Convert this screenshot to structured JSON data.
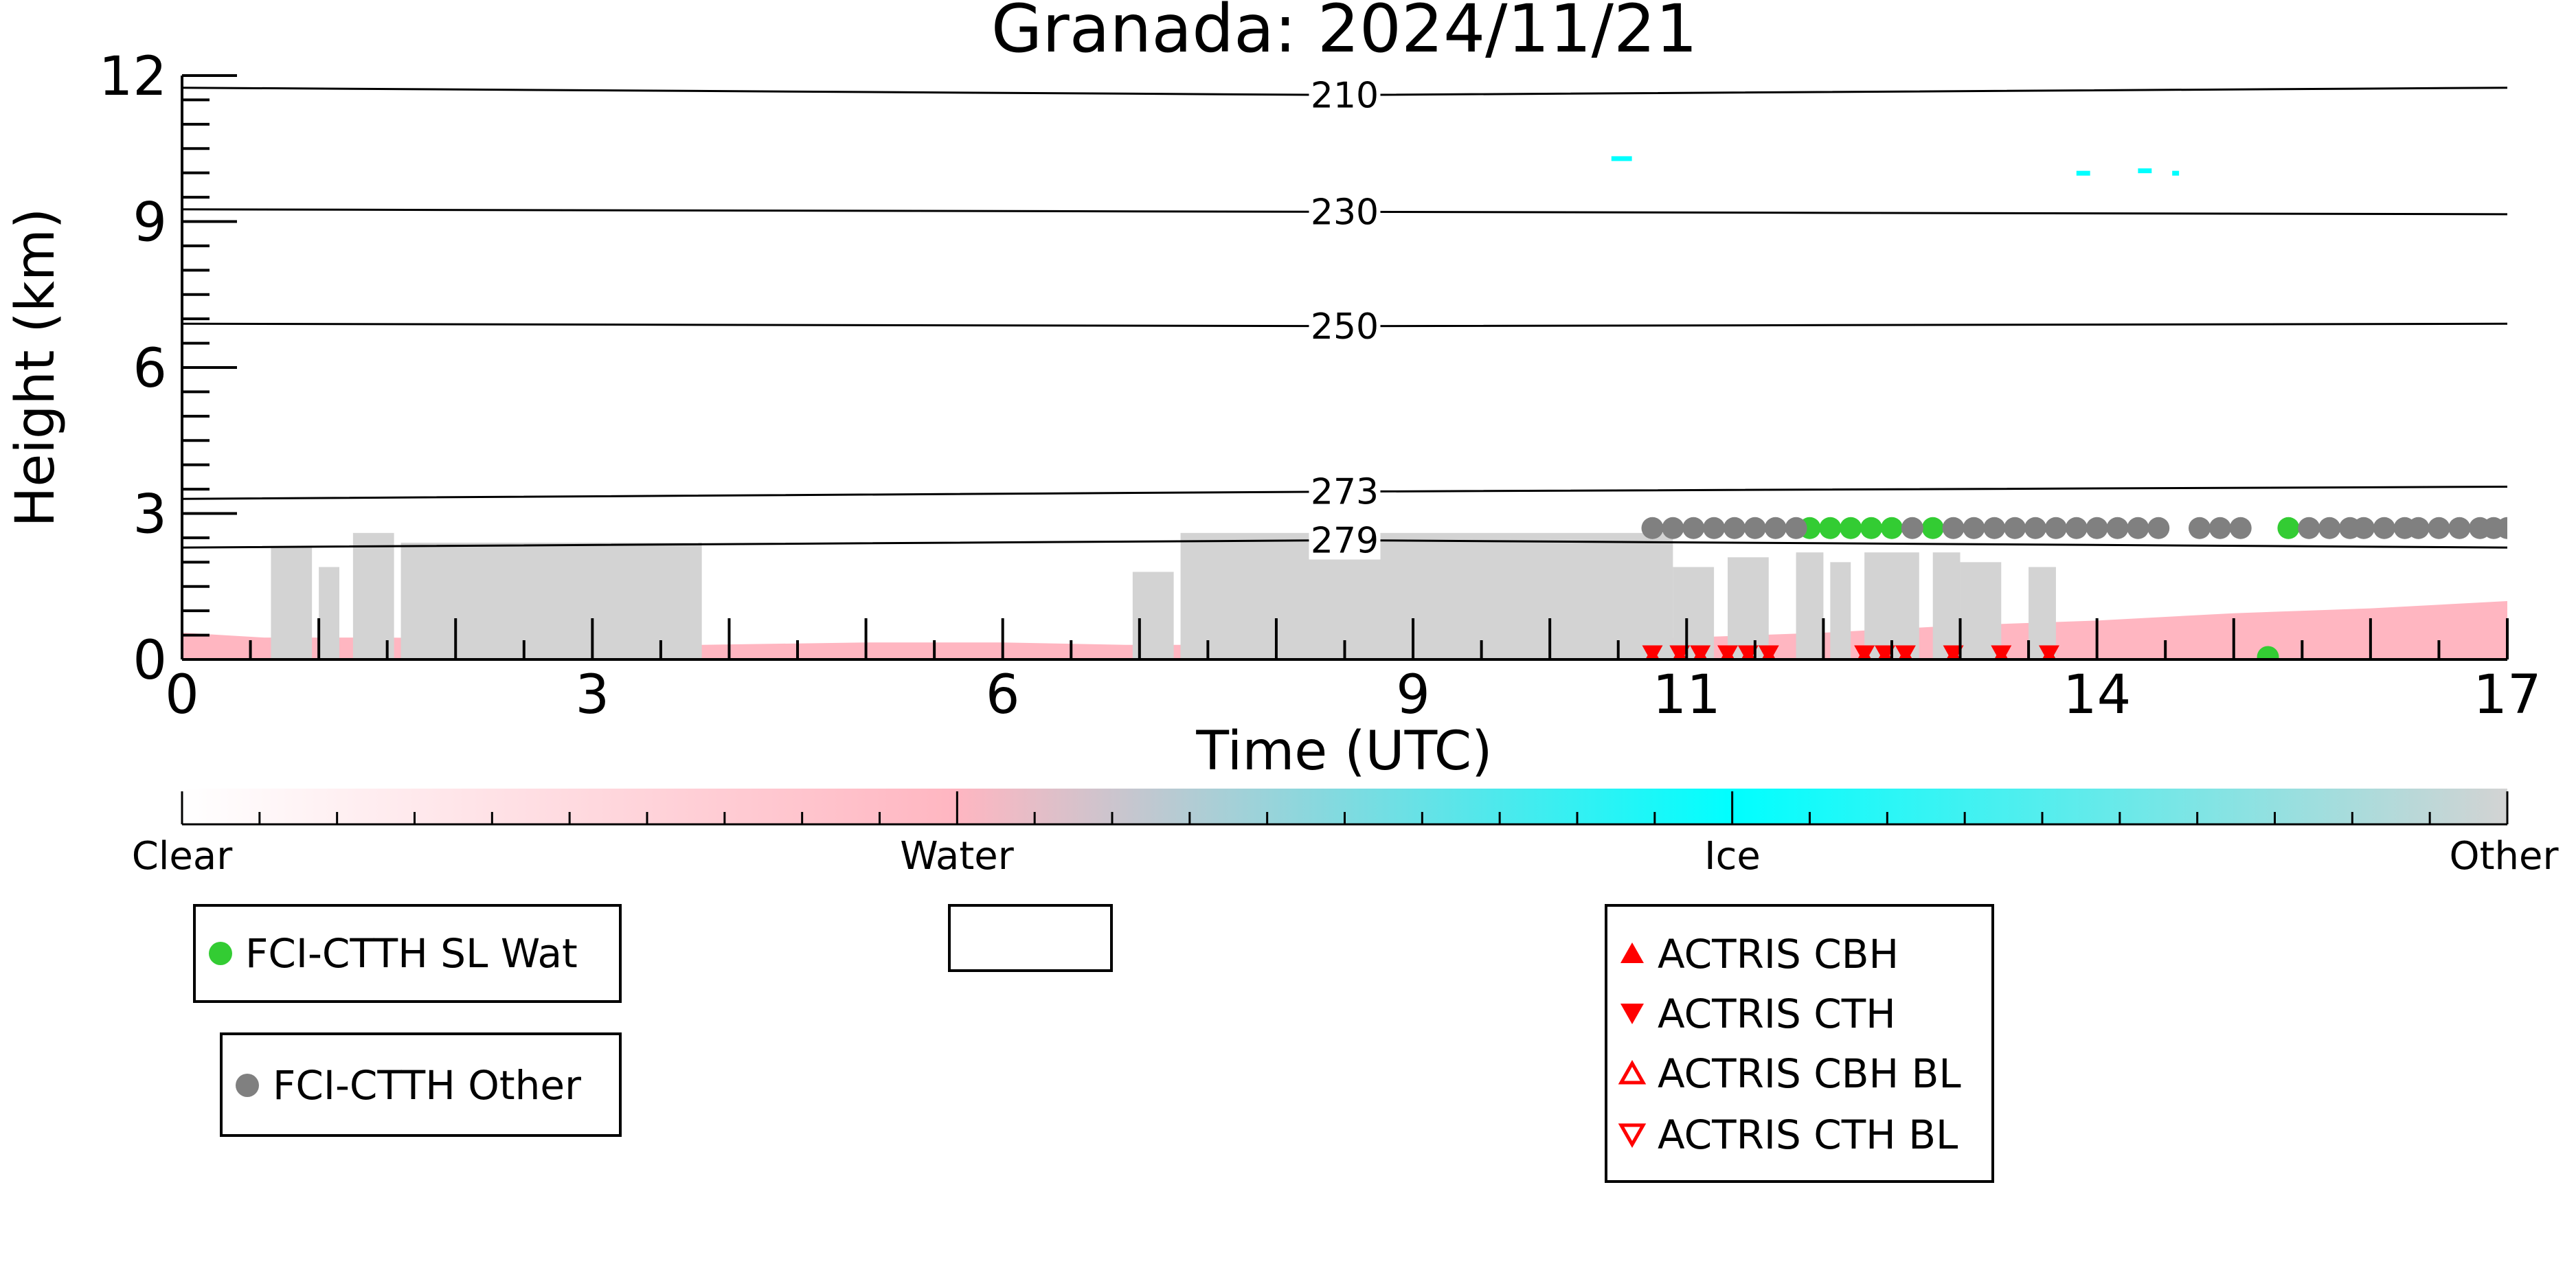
{
  "chart_data": {
    "type": "scatter",
    "title": "Granada: 2024/11/21",
    "xlabel": "Time (UTC)",
    "ylabel": "Height (km)",
    "xlim": [
      0,
      17
    ],
    "ylim": [
      0,
      12
    ],
    "xticks": [
      "0",
      "3",
      "6",
      "9",
      "11",
      "14",
      "17"
    ],
    "xtick_values": [
      0,
      3,
      6,
      9,
      11,
      14,
      17
    ],
    "yticks": [
      "0",
      "3",
      "6",
      "9",
      "12"
    ],
    "ytick_values": [
      0,
      3,
      6,
      9,
      12
    ],
    "isotherms": [
      {
        "label": "210",
        "y_start": 11.75,
        "y_mid": 11.6,
        "y_end": 11.75
      },
      {
        "label": "230",
        "y_start": 9.25,
        "y_mid": 9.2,
        "y_end": 9.15
      },
      {
        "label": "250",
        "y_start": 6.9,
        "y_mid": 6.85,
        "y_end": 6.9
      },
      {
        "label": "273",
        "y_start": 3.3,
        "y_mid": 3.45,
        "y_end": 3.55
      },
      {
        "label": "279",
        "y_start": 2.3,
        "y_mid": 2.45,
        "y_end": 2.3
      }
    ],
    "colorbar": {
      "labels": [
        "Clear",
        "Water",
        "Ice",
        "Other"
      ],
      "colors": [
        "#ffffff",
        "#ffb6c1",
        "#00ffff",
        "#d3d3d3"
      ]
    },
    "classification_colors": {
      "water": "#ffb6c1",
      "ice": "#00ffff",
      "other": "#d3d3d3"
    },
    "cloud_blocks": [
      {
        "x0": 0.65,
        "x1": 0.95,
        "top": 2.3
      },
      {
        "x0": 1.0,
        "x1": 1.15,
        "top": 1.9
      },
      {
        "x0": 1.25,
        "x1": 1.55,
        "top": 2.6
      },
      {
        "x0": 1.6,
        "x1": 3.8,
        "top": 2.4
      },
      {
        "x0": 6.95,
        "x1": 7.25,
        "top": 1.8
      },
      {
        "x0": 7.3,
        "x1": 10.9,
        "top": 2.6
      },
      {
        "x0": 10.9,
        "x1": 11.2,
        "top": 1.9
      },
      {
        "x0": 11.3,
        "x1": 11.6,
        "top": 2.1
      },
      {
        "x0": 11.8,
        "x1": 12.0,
        "top": 2.2
      },
      {
        "x0": 12.05,
        "x1": 12.2,
        "top": 2.0
      },
      {
        "x0": 12.3,
        "x1": 12.7,
        "top": 2.2
      },
      {
        "x0": 12.8,
        "x1": 13.0,
        "top": 2.2
      },
      {
        "x0": 13.0,
        "x1": 13.3,
        "top": 2.0
      },
      {
        "x0": 13.5,
        "x1": 13.7,
        "top": 1.9
      }
    ],
    "ice_patches": [
      {
        "x0": 10.45,
        "x1": 10.6,
        "y": 10.3
      },
      {
        "x0": 13.85,
        "x1": 13.95,
        "y": 10.0
      },
      {
        "x0": 14.3,
        "x1": 14.4,
        "y": 10.05
      },
      {
        "x0": 14.55,
        "x1": 14.6,
        "y": 10.0
      }
    ],
    "water_band": [
      [
        0,
        0.55
      ],
      [
        0.6,
        0.45
      ],
      [
        1.5,
        0.45
      ],
      [
        3,
        0.4
      ],
      [
        3.8,
        0.3
      ],
      [
        5,
        0.35
      ],
      [
        6,
        0.35
      ],
      [
        6.9,
        0.3
      ],
      [
        7.3,
        0.3
      ],
      [
        10,
        0.4
      ],
      [
        11,
        0.45
      ],
      [
        12,
        0.55
      ],
      [
        13,
        0.7
      ],
      [
        14,
        0.8
      ],
      [
        15,
        0.95
      ],
      [
        16,
        1.05
      ],
      [
        17,
        1.2
      ]
    ],
    "series": [
      {
        "name": "FCI-CTTH SL Wat",
        "color": "#33cc33",
        "marker": "circle",
        "x": [
          11.9,
          12.05,
          12.2,
          12.35,
          12.5,
          12.8,
          15.25,
          15.4
        ],
        "y": [
          2.7,
          2.7,
          2.7,
          2.7,
          2.7,
          2.7,
          0.05,
          2.7
        ]
      },
      {
        "name": "FCI-CTTH Other",
        "color": "#808080",
        "marker": "circle",
        "x": [
          10.75,
          10.9,
          11.05,
          11.2,
          11.35,
          11.5,
          11.65,
          11.8,
          12.65,
          12.95,
          13.1,
          13.25,
          13.4,
          13.55,
          13.7,
          13.85,
          14.0,
          14.15,
          14.3,
          14.45,
          14.75,
          14.9,
          15.05,
          15.55,
          15.7,
          15.85,
          15.95,
          16.1,
          16.25,
          16.35,
          16.5,
          16.65,
          16.8,
          16.9,
          17.0
        ],
        "y": [
          2.7,
          2.7,
          2.7,
          2.7,
          2.7,
          2.7,
          2.7,
          2.7,
          2.7,
          2.7,
          2.7,
          2.7,
          2.7,
          2.7,
          2.7,
          2.7,
          2.7,
          2.7,
          2.7,
          2.7,
          2.7,
          2.7,
          2.7,
          2.7,
          2.7,
          2.7,
          2.7,
          2.7,
          2.7,
          2.7,
          2.7,
          2.7,
          2.7,
          2.7,
          2.7
        ]
      },
      {
        "name": "ACTRIS CBH",
        "color": "#ff0000",
        "marker": "triangle-up",
        "x": [
          10.75,
          10.95,
          11.1,
          11.3,
          11.45,
          11.6,
          12.3,
          12.45,
          12.6,
          12.95,
          13.3,
          13.65
        ],
        "y": [
          0.05,
          0.05,
          0.05,
          0.05,
          0.05,
          0.05,
          0.05,
          0.05,
          0.05,
          0.05,
          0.05,
          0.05
        ]
      },
      {
        "name": "ACTRIS CTH",
        "color": "#ff0000",
        "marker": "triangle-down",
        "x": [
          10.75,
          10.95,
          11.1,
          11.3,
          11.45,
          11.6,
          12.3,
          12.45,
          12.6,
          12.95,
          13.3,
          13.65
        ],
        "y": [
          0.12,
          0.12,
          0.12,
          0.12,
          0.12,
          0.12,
          0.12,
          0.12,
          0.12,
          0.12,
          0.12,
          0.12
        ]
      }
    ],
    "legends": [
      {
        "entries": [
          {
            "label": "FCI-CTTH SL Wat",
            "marker": "circle",
            "color": "#33cc33"
          }
        ]
      },
      {
        "entries": [
          {
            "label": "FCI-CTTH Other",
            "marker": "circle",
            "color": "#808080"
          }
        ]
      },
      {
        "entries": []
      },
      {
        "entries": [
          {
            "label": "ACTRIS CBH",
            "marker": "triangle-up",
            "color": "#ff0000"
          },
          {
            "label": "ACTRIS CTH",
            "marker": "triangle-down",
            "color": "#ff0000"
          },
          {
            "label": "ACTRIS CBH BL",
            "marker": "triangle-up-open",
            "color": "#ff0000"
          },
          {
            "label": "ACTRIS CTH BL",
            "marker": "triangle-down-open",
            "color": "#ff0000"
          }
        ]
      }
    ],
    "grid": false
  }
}
